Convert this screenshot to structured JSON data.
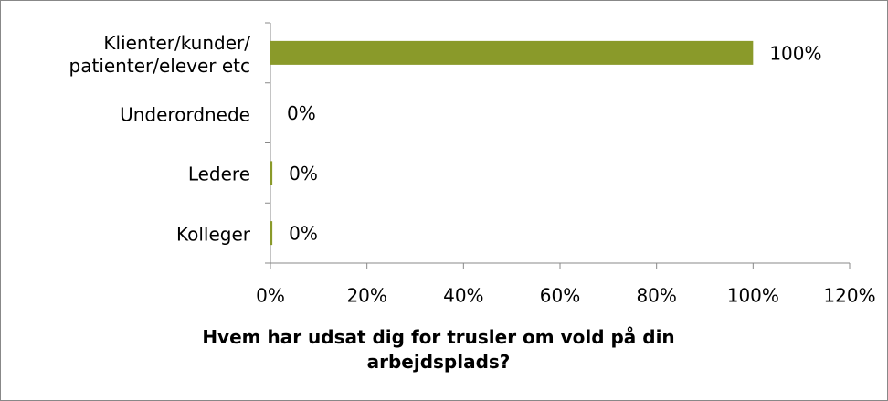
{
  "chart_data": {
    "type": "bar",
    "orientation": "horizontal",
    "title": "Hvem har udsat dig for trusler om vold på din arbejdsplads?",
    "categories": [
      "Klienter/kunder/\npatienter/elever etc",
      "Underordnede",
      "Ledere",
      "Kolleger"
    ],
    "values": [
      100,
      0,
      0.4,
      0.4
    ],
    "value_labels": [
      "100%",
      "0%",
      "0%",
      "0%"
    ],
    "color": "#8a9a2a",
    "xlim": [
      0,
      120
    ],
    "xticks": [
      {
        "value": 0,
        "label": "0%"
      },
      {
        "value": 20,
        "label": "20%"
      },
      {
        "value": 40,
        "label": "40%"
      },
      {
        "value": 60,
        "label": "60%"
      },
      {
        "value": 80,
        "label": "80%"
      },
      {
        "value": 100,
        "label": "100%"
      },
      {
        "value": 120,
        "label": "120%"
      }
    ],
    "grid": false
  }
}
